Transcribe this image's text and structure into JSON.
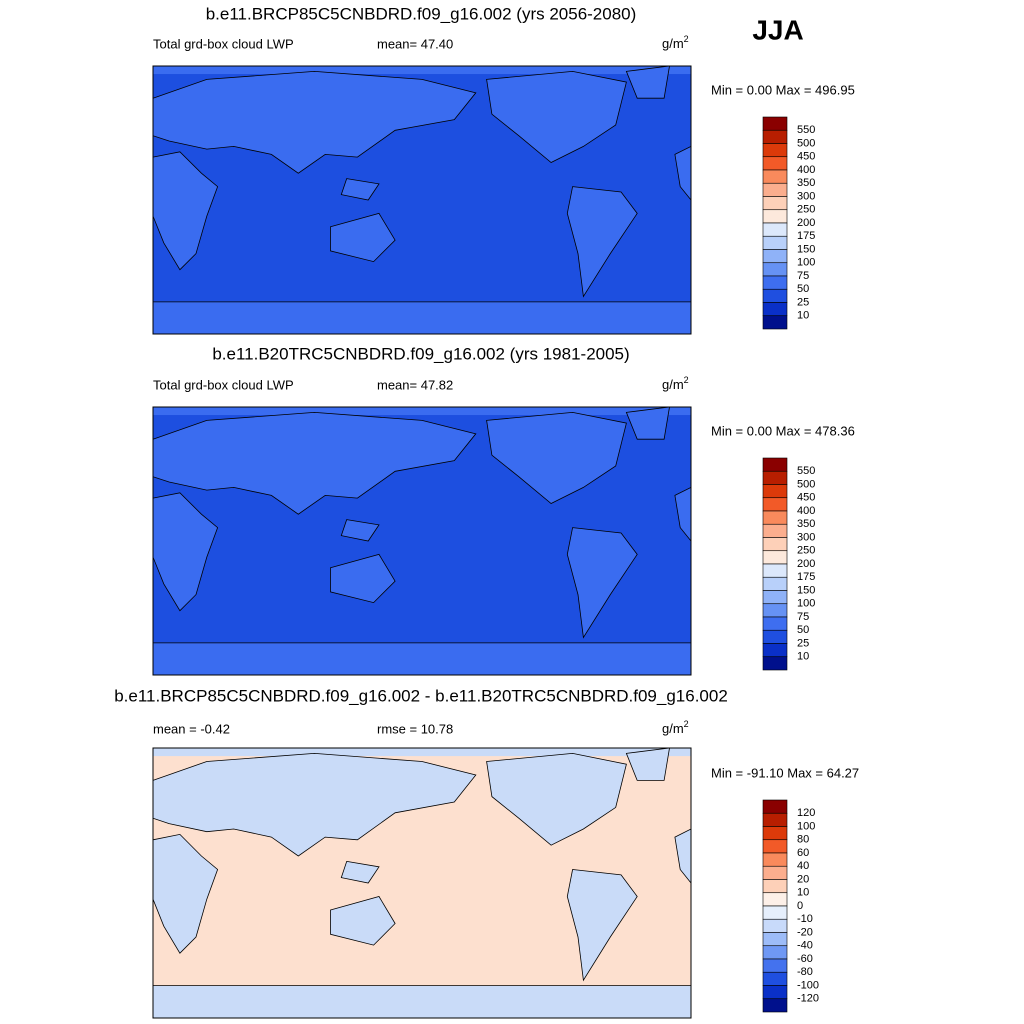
{
  "season": "JJA",
  "panels": [
    {
      "title": "b.e11.BRCP85C5CNBDRD.f09_g16.002 (yrs 2056-2080)",
      "left_label": "Total grd-box cloud LWP",
      "center_label": "mean=  47.40",
      "units": "g/m",
      "units_exponent": "2",
      "range": "Min =   0.00 Max = 496.95",
      "ocean_color": "#1d4fe0",
      "land_color": "#3a6cf0",
      "colorbar": {
        "labels": [
          "550",
          "500",
          "450",
          "400",
          "350",
          "300",
          "250",
          "200",
          "175",
          "150",
          "100",
          "75",
          "50",
          "25",
          "10"
        ],
        "colors": [
          "#8a0000",
          "#b81e00",
          "#dc3a0a",
          "#f25a28",
          "#f98a5c",
          "#fbae8e",
          "#fdd0b8",
          "#fde9dc",
          "#dce8fb",
          "#b8d0fa",
          "#8fb2f8",
          "#6692f4",
          "#3e6ef0",
          "#1f4fe0",
          "#0a30c8",
          "#00108c"
        ]
      }
    },
    {
      "title": "b.e11.B20TRC5CNBDRD.f09_g16.002 (yrs 1981-2005)",
      "left_label": "Total grd-box cloud LWP",
      "center_label": "mean=  47.82",
      "units": "g/m",
      "units_exponent": "2",
      "range": "Min =   0.00 Max = 478.36",
      "ocean_color": "#1d4fe0",
      "land_color": "#3a6cf0",
      "colorbar": {
        "labels": [
          "550",
          "500",
          "450",
          "400",
          "350",
          "300",
          "250",
          "200",
          "175",
          "150",
          "100",
          "75",
          "50",
          "25",
          "10"
        ],
        "colors": [
          "#8a0000",
          "#b81e00",
          "#dc3a0a",
          "#f25a28",
          "#f98a5c",
          "#fbae8e",
          "#fdd0b8",
          "#fde9dc",
          "#dce8fb",
          "#b8d0fa",
          "#8fb2f8",
          "#6692f4",
          "#3e6ef0",
          "#1f4fe0",
          "#0a30c8",
          "#00108c"
        ]
      }
    },
    {
      "title": "b.e11.BRCP85C5CNBDRD.f09_g16.002 - b.e11.B20TRC5CNBDRD.f09_g16.002",
      "left_label": "mean =  -0.42",
      "center_label": "rmse =  10.78",
      "units": "g/m",
      "units_exponent": "2",
      "range": "Min = -91.10 Max =  64.27",
      "ocean_color": "#fde0cf",
      "land_color": "#c9dbf8",
      "colorbar": {
        "labels": [
          "120",
          "100",
          "80",
          "60",
          "40",
          "20",
          "10",
          "0",
          "-10",
          "-20",
          "-40",
          "-60",
          "-80",
          "-100",
          "-120"
        ],
        "colors": [
          "#8a0000",
          "#b81e00",
          "#dc3a0a",
          "#f25a28",
          "#f98a5c",
          "#fbae8e",
          "#fdd0b8",
          "#fdf0e8",
          "#e6effc",
          "#c8dafa",
          "#9dbcf8",
          "#6f98f4",
          "#4472ee",
          "#1f4fe0",
          "#0a30c8",
          "#00108c"
        ]
      }
    }
  ]
}
